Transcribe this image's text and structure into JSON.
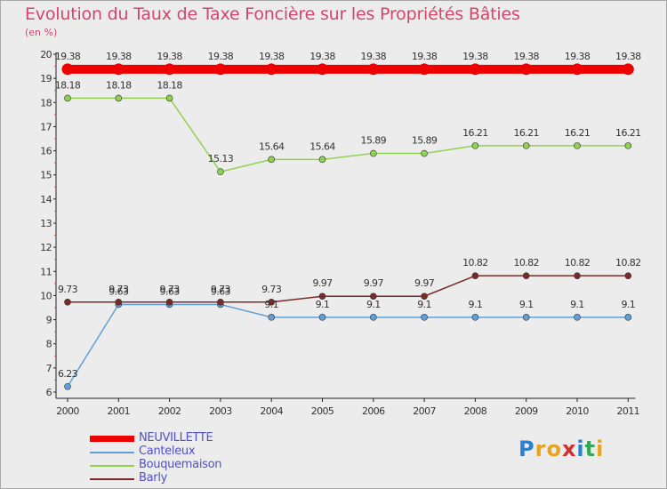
{
  "title": "Evolution du Taux de Taxe Foncière sur les Propriétés Bâties",
  "unit": "(en %)",
  "logo": {
    "letters": [
      "P",
      "r",
      "o",
      "x",
      "i",
      "t",
      "i"
    ],
    "colors": [
      "#2a7fd0",
      "#e8a41c",
      "#e8a41c",
      "#d42f2f",
      "#2a7fd0",
      "#34a853",
      "#e8a41c"
    ]
  },
  "chart_data": {
    "type": "line",
    "title": "Evolution du Taux de Taxe Foncière sur les Propriétés Bâties",
    "ylabel": "(en %)",
    "xlabel": "",
    "x": [
      "2000",
      "2001",
      "2002",
      "2003",
      "2004",
      "2005",
      "2006",
      "2007",
      "2008",
      "2009",
      "2010",
      "2011"
    ],
    "ylim": [
      6,
      20
    ],
    "yticks": [
      "6",
      "7",
      "8",
      "9",
      "10",
      "11",
      "12",
      "13",
      "14",
      "15",
      "16",
      "17",
      "18",
      "19",
      "20"
    ],
    "grid": false,
    "legend_position": "bottom-left",
    "series": [
      {
        "name": "NEUVILLETTE",
        "color": "#ee0000",
        "values": [
          19.38,
          19.38,
          19.38,
          19.38,
          19.38,
          19.38,
          19.38,
          19.38,
          19.38,
          19.38,
          19.38,
          19.38
        ],
        "labels": [
          "19.38",
          "19.38",
          "19.38",
          "19.38",
          "19.38",
          "19.38",
          "19.38",
          "19.38",
          "19.38",
          "19.38",
          "19.38",
          "19.38"
        ]
      },
      {
        "name": "Canteleux",
        "color": "#5fa0d8",
        "values": [
          6.23,
          9.63,
          9.63,
          9.63,
          9.1,
          9.1,
          9.1,
          9.1,
          9.1,
          9.1,
          9.1,
          9.1
        ],
        "labels": [
          "6.23",
          "9.63",
          "9.63",
          "9.63",
          "9.1",
          "9.1",
          "9.1",
          "9.1",
          "9.1",
          "9.1",
          "9.1",
          "9.1"
        ]
      },
      {
        "name": "Bouquemaison",
        "color": "#92d050",
        "values": [
          18.18,
          18.18,
          18.18,
          15.13,
          15.64,
          15.64,
          15.89,
          15.89,
          16.21,
          16.21,
          16.21,
          16.21
        ],
        "labels": [
          "18.18",
          "18.18",
          "18.18",
          "15.13",
          "15.64",
          "15.64",
          "15.89",
          "15.89",
          "16.21",
          "16.21",
          "16.21",
          "16.21"
        ]
      },
      {
        "name": "Barly",
        "color": "#7b2a2a",
        "values": [
          9.73,
          9.73,
          9.73,
          9.73,
          9.73,
          9.97,
          9.97,
          9.97,
          10.82,
          10.82,
          10.82,
          10.82
        ],
        "labels": [
          "9.73",
          "9.73",
          "9.73",
          "9.73",
          "9.73",
          "9.97",
          "9.97",
          "9.97",
          "10.82",
          "10.82",
          "10.82",
          "10.82"
        ]
      }
    ]
  }
}
